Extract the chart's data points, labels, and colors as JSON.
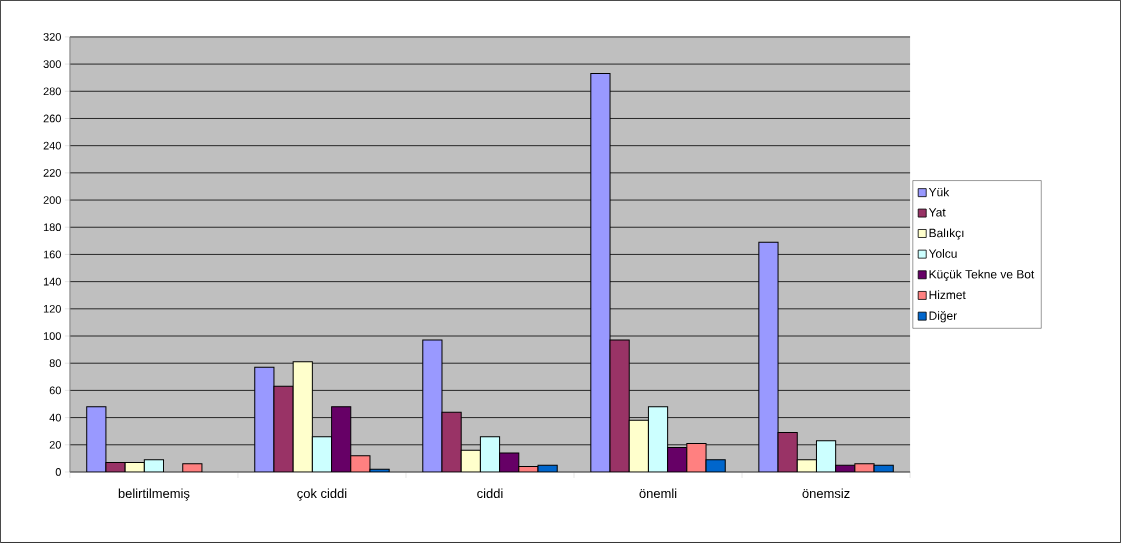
{
  "chart_data": {
    "type": "bar",
    "categories": [
      "belirtilmemiş",
      "çok ciddi",
      "ciddi",
      "önemli",
      "önemsiz"
    ],
    "series": [
      {
        "name": "Yük",
        "color": "#9999ff",
        "values": [
          48,
          77,
          97,
          293,
          169
        ]
      },
      {
        "name": "Yat",
        "color": "#993366",
        "values": [
          7,
          63,
          44,
          97,
          29
        ]
      },
      {
        "name": "Balıkçı",
        "color": "#ffffcc",
        "values": [
          7,
          81,
          16,
          38,
          9
        ]
      },
      {
        "name": "Yolcu",
        "color": "#ccffff",
        "values": [
          9,
          26,
          26,
          48,
          23
        ]
      },
      {
        "name": "Küçük Tekne ve Bot",
        "color": "#660066",
        "values": [
          null,
          48,
          14,
          18,
          5
        ]
      },
      {
        "name": "Hizmet",
        "color": "#ff8080",
        "values": [
          6,
          12,
          4,
          21,
          6
        ]
      },
      {
        "name": "Diğer",
        "color": "#0066cc",
        "values": [
          null,
          2,
          5,
          9,
          5
        ]
      }
    ],
    "ylim": [
      0,
      320
    ],
    "yticks": [
      0,
      20,
      40,
      60,
      80,
      100,
      120,
      140,
      160,
      180,
      200,
      220,
      240,
      260,
      280,
      300,
      320
    ],
    "grid": "y",
    "legend": "right"
  }
}
